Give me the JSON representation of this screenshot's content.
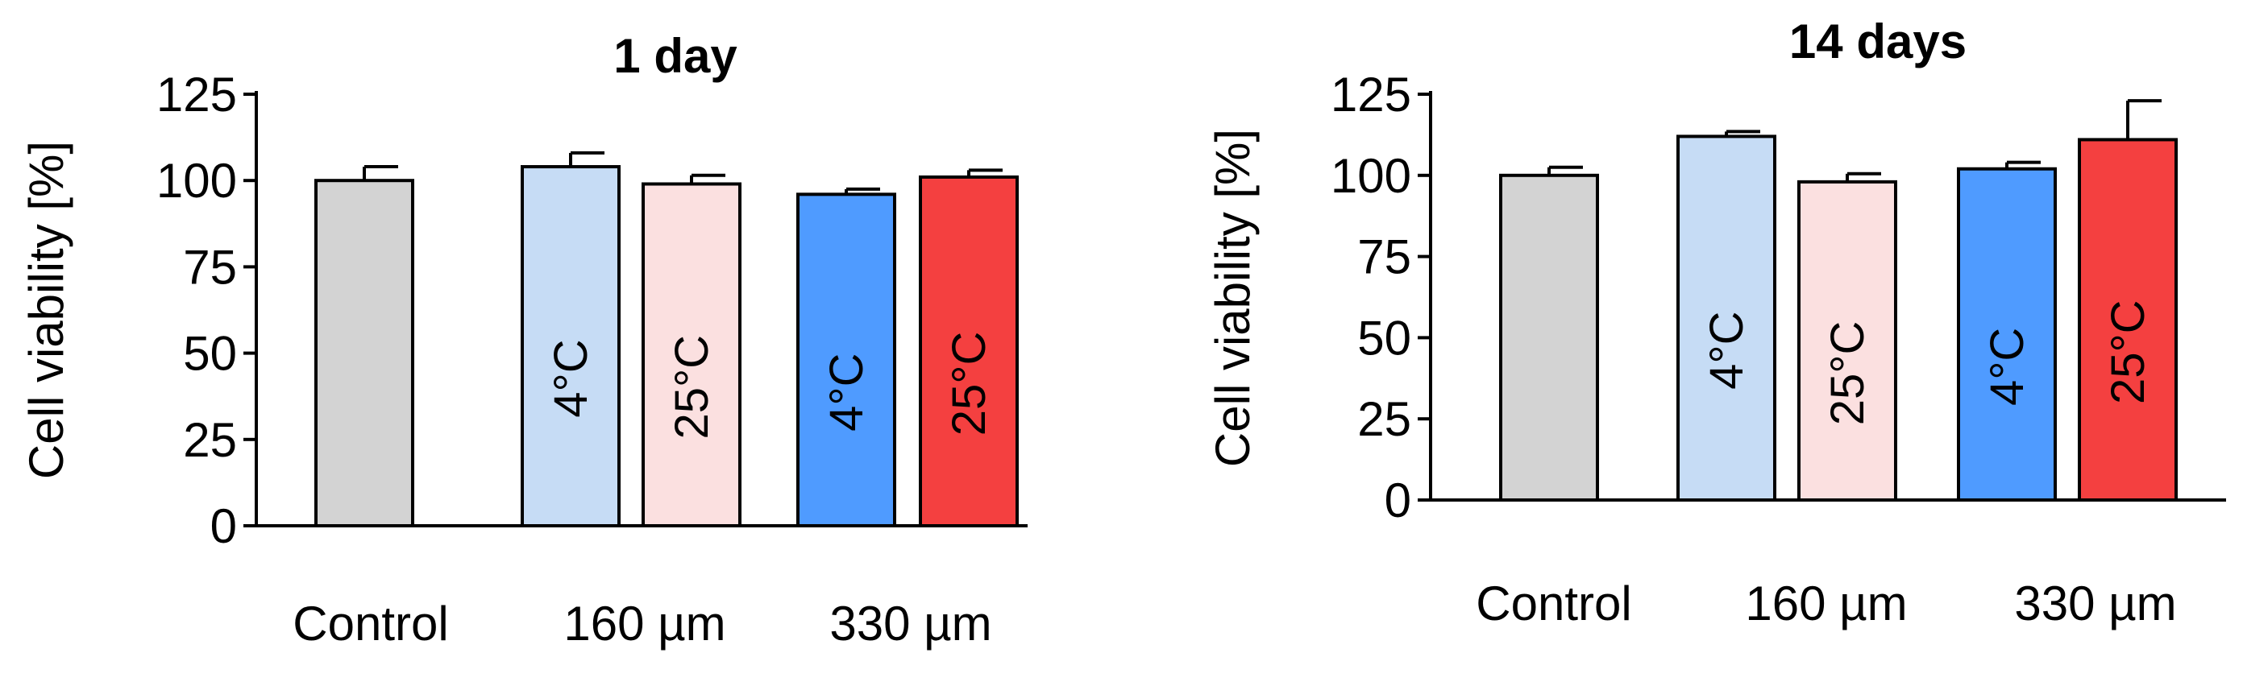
{
  "colors": {
    "control": "#d3d3d3",
    "um160_4C": "#c6dcf5",
    "um160_25C": "#fbe0e0",
    "um330_4C": "#4f9bff",
    "um330_25C": "#f44040",
    "stroke": "#000000"
  },
  "chart_data": [
    {
      "type": "bar",
      "title": "1 day",
      "ylabel": "Cell viability [%]",
      "xlabel": "",
      "ylim": [
        0,
        125
      ],
      "yticks": [
        0,
        25,
        50,
        75,
        100,
        125
      ],
      "grid": false,
      "group_labels": [
        "Control",
        "160 µm",
        "330 µm"
      ],
      "bars": [
        {
          "group": "Control",
          "label": "",
          "value": 100,
          "error": 4,
          "color_key": "control"
        },
        {
          "group": "160 µm",
          "label": "4°C",
          "value": 104,
          "error": 4,
          "color_key": "um160_4C"
        },
        {
          "group": "160 µm",
          "label": "25°C",
          "value": 99,
          "error": 2.5,
          "color_key": "um160_25C"
        },
        {
          "group": "330 µm",
          "label": "4°C",
          "value": 96,
          "error": 1.5,
          "color_key": "um330_4C"
        },
        {
          "group": "330 µm",
          "label": "25°C",
          "value": 101,
          "error": 2,
          "color_key": "um330_25C"
        }
      ]
    },
    {
      "type": "bar",
      "title": "14 days",
      "ylabel": "Cell viability [%]",
      "xlabel": "",
      "ylim": [
        0,
        125
      ],
      "yticks": [
        0,
        25,
        50,
        75,
        100,
        125
      ],
      "grid": false,
      "group_labels": [
        "Control",
        "160 µm",
        "330 µm"
      ],
      "bars": [
        {
          "group": "Control",
          "label": "",
          "value": 100,
          "error": 2.5,
          "color_key": "control"
        },
        {
          "group": "160 µm",
          "label": "4°C",
          "value": 112,
          "error": 1.5,
          "color_key": "um160_4C"
        },
        {
          "group": "160 µm",
          "label": "25°C",
          "value": 98,
          "error": 2.5,
          "color_key": "um160_25C"
        },
        {
          "group": "330 µm",
          "label": "4°C",
          "value": 102,
          "error": 2,
          "color_key": "um330_4C"
        },
        {
          "group": "330 µm",
          "label": "25°C",
          "value": 111,
          "error": 12,
          "color_key": "um330_25C"
        }
      ]
    }
  ]
}
